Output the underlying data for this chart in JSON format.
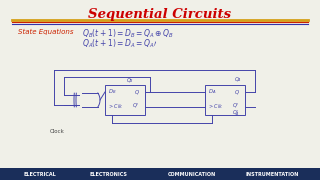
{
  "title": "Sequential Circuits",
  "title_color": "#cc0000",
  "title_fontsize": 9.5,
  "bg_color": "#f0f0e8",
  "state_eq_label": "State Equations",
  "footer_items": [
    "ELECTRICAL",
    "ELECTRONICS",
    "COMMUNICATION",
    "INSTRUMENTATION"
  ],
  "footer_bg": "#1a2e5a",
  "footer_color": "#ffffff",
  "line_color": "#4444aa",
  "sep_gold": "#d4a017",
  "sep_red": "#cc2200",
  "sep_blue": "#3333aa"
}
